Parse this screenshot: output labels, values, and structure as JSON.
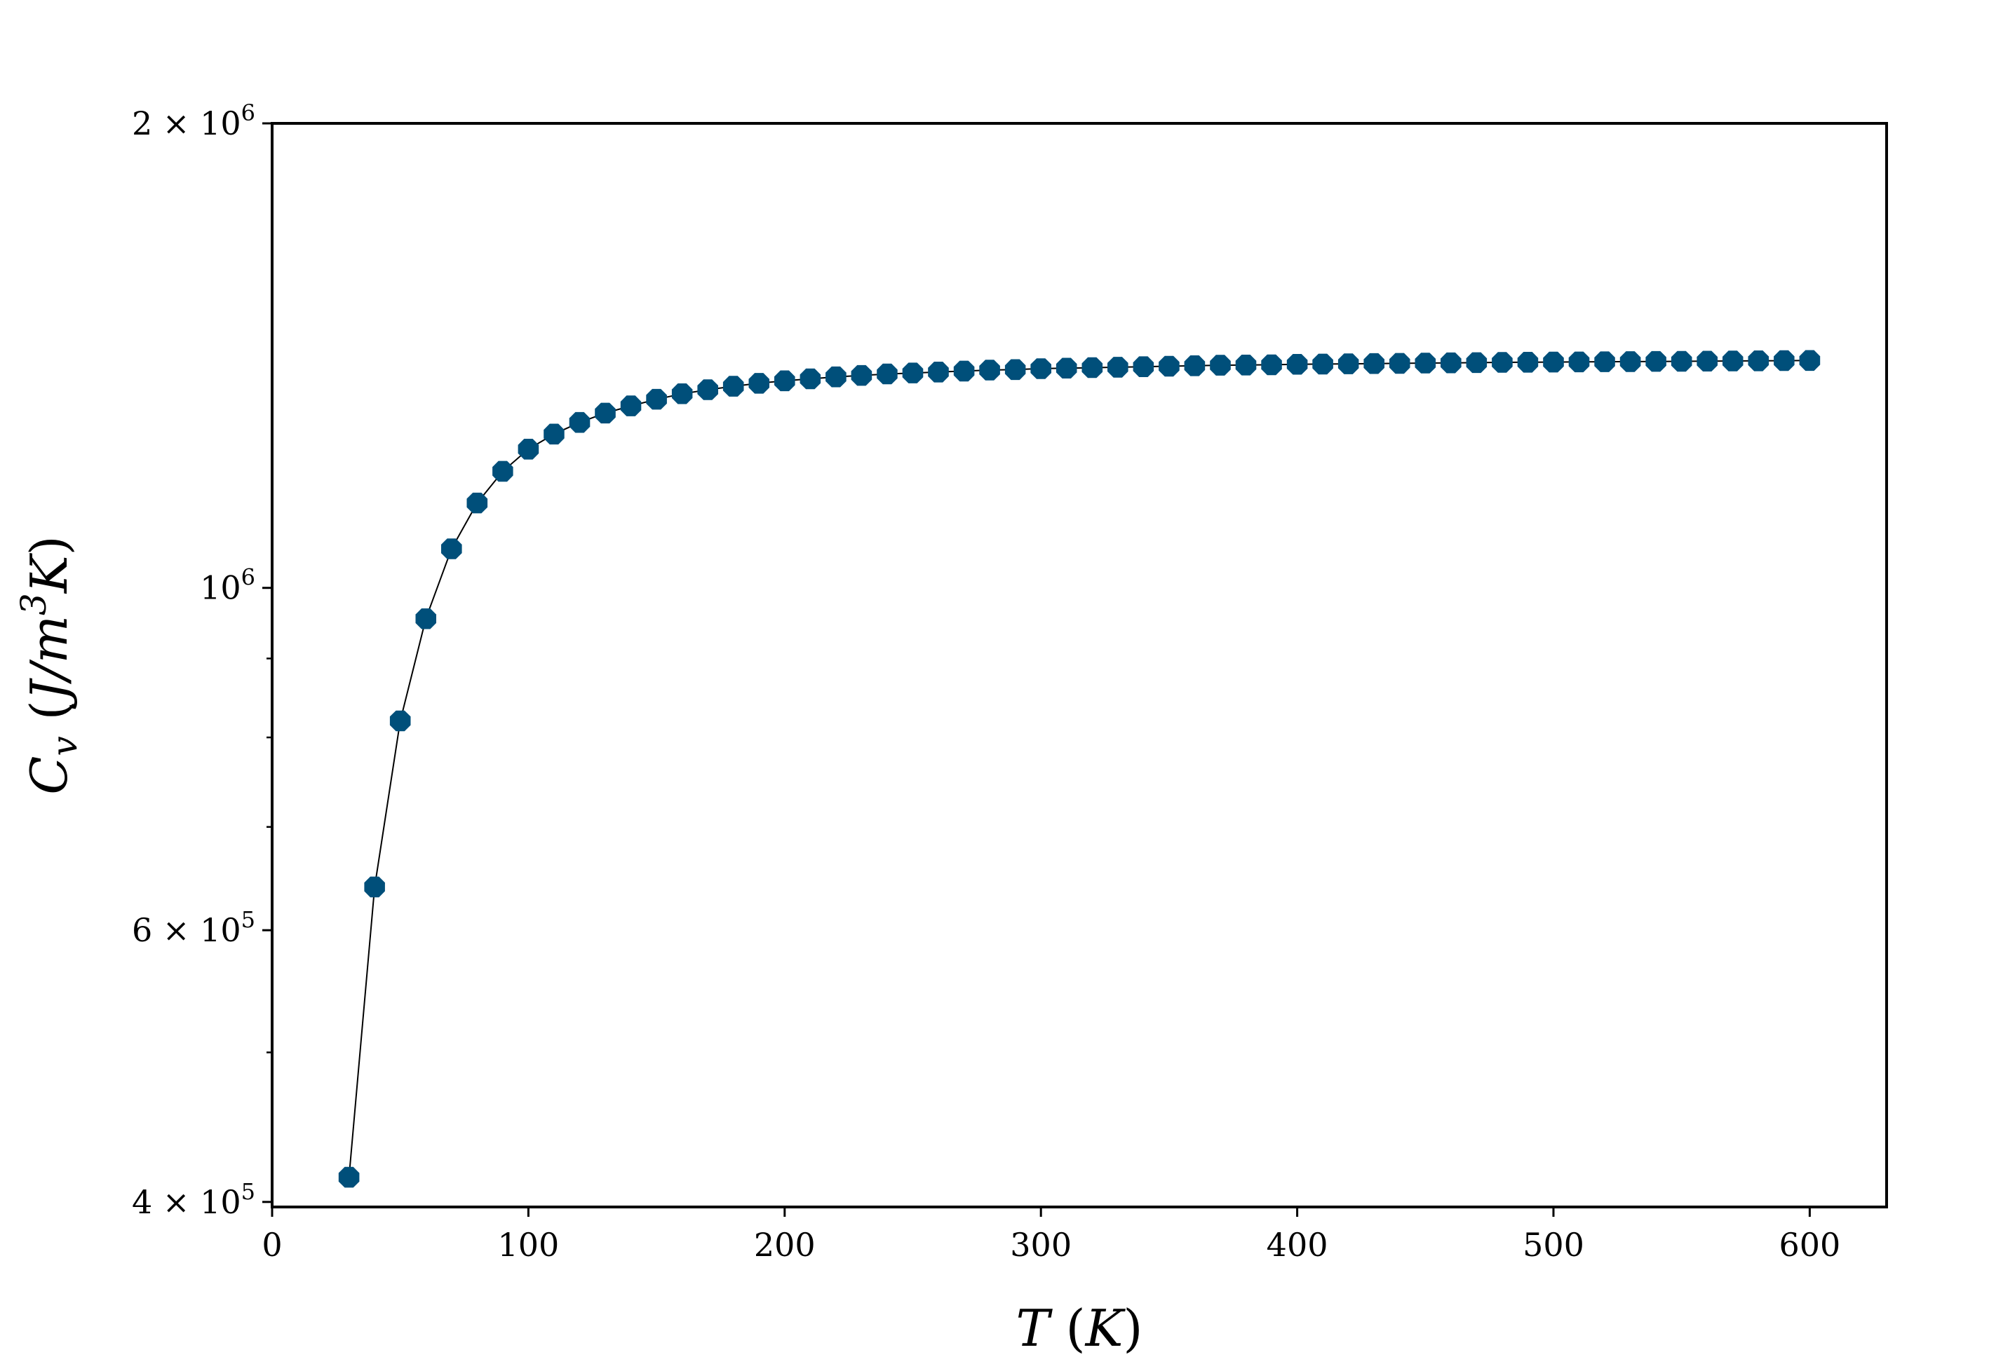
{
  "chart_data": {
    "type": "line",
    "title": "",
    "xlabel": "T (K)",
    "ylabel": "C_v (J/m^3K)",
    "x_axis": {
      "scale": "linear",
      "range": [
        0,
        630
      ],
      "ticks": [
        0,
        100,
        200,
        300,
        400,
        500,
        600
      ],
      "tick_labels": [
        "0",
        "100",
        "200",
        "300",
        "400",
        "500",
        "600"
      ]
    },
    "y_axis": {
      "scale": "log",
      "range": [
        397000,
        2000000
      ],
      "major_ticks": [
        {
          "value": 400000,
          "mantissa": "4",
          "exponent": "5"
        },
        {
          "value": 600000,
          "mantissa": "6",
          "exponent": "5"
        },
        {
          "value": 1000000,
          "mantissa": "",
          "exponent": "6"
        },
        {
          "value": 2000000,
          "mantissa": "2",
          "exponent": "6"
        }
      ],
      "minor_ticks": [
        500000,
        700000,
        800000,
        900000
      ]
    },
    "grid": false,
    "legend": "none",
    "series": [
      {
        "line_color": "#000000",
        "marker_color": "#004f7a",
        "marker": "octagon",
        "x": [
          30,
          40,
          50,
          60,
          70,
          80,
          90,
          100,
          110,
          120,
          130,
          140,
          150,
          160,
          170,
          180,
          190,
          200,
          210,
          220,
          230,
          240,
          250,
          260,
          270,
          280,
          290,
          300,
          310,
          320,
          330,
          340,
          350,
          360,
          370,
          380,
          390,
          400,
          410,
          420,
          430,
          440,
          450,
          460,
          470,
          480,
          490,
          500,
          510,
          520,
          530,
          540,
          550,
          560,
          570,
          580,
          590,
          600
        ],
        "y": [
          415000,
          640000,
          820000,
          955000,
          1060000,
          1135000,
          1190000,
          1230000,
          1258000,
          1280000,
          1298000,
          1312000,
          1325000,
          1336000,
          1344000,
          1351000,
          1357000,
          1362000,
          1366000,
          1370000,
          1373000,
          1376000,
          1378000,
          1380000,
          1382000,
          1384000,
          1385000,
          1387000,
          1388000,
          1389000,
          1390000,
          1391000,
          1392000,
          1393000,
          1394000,
          1394500,
          1395000,
          1396000,
          1396500,
          1397000,
          1397500,
          1398000,
          1398500,
          1399000,
          1399500,
          1400000,
          1400300,
          1400600,
          1401000,
          1401300,
          1401600,
          1402000,
          1402300,
          1402600,
          1403000,
          1403300,
          1403600,
          1404000
        ]
      }
    ]
  }
}
